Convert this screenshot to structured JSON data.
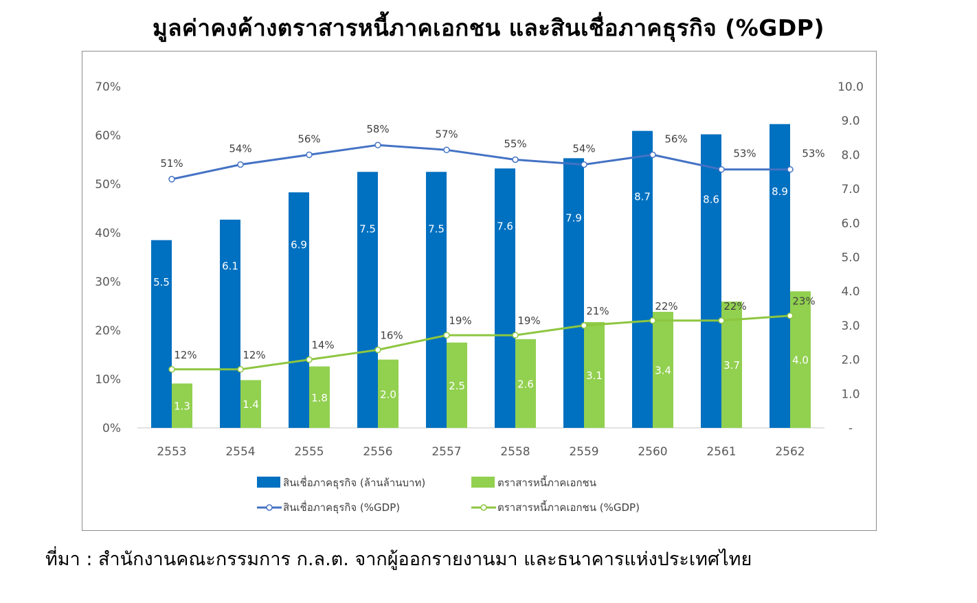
{
  "title": "มูลค่าคงค้างตราสารหนี้ภาคเอกชน และสินเชื่อภาคธุรกิจ (%GDP)",
  "source": "ที่มา : สำนักงานคณะกรรมการ ก.ล.ต. จากผู้ออกรายงานมา และธนาคารแห่งประเทศไทย",
  "chart_data": {
    "type": "bar",
    "categories": [
      "2553",
      "2554",
      "2555",
      "2556",
      "2557",
      "2558",
      "2559",
      "2560",
      "2561",
      "2562"
    ],
    "left_axis": {
      "ticks": [
        "0%",
        "10%",
        "20%",
        "30%",
        "40%",
        "50%",
        "60%",
        "70%"
      ],
      "range": [
        0,
        70
      ]
    },
    "right_axis": {
      "ticks": [
        "-",
        "1.0",
        "2.0",
        "3.0",
        "4.0",
        "5.0",
        "6.0",
        "7.0",
        "8.0",
        "9.0",
        "10.0"
      ],
      "range": [
        0,
        10
      ]
    },
    "series": [
      {
        "name": "สินเชื่อภาคธุรกิจ (ล้านล้านบาท)",
        "kind": "bar",
        "axis": "right",
        "color": "#0070c0",
        "values": [
          5.5,
          6.1,
          6.9,
          7.5,
          7.5,
          7.6,
          7.9,
          8.7,
          8.6,
          8.9
        ],
        "labels": [
          "5.5",
          "6.1",
          "6.9",
          "7.5",
          "7.5",
          "7.6",
          "7.9",
          "8.7",
          "8.6",
          "8.9"
        ]
      },
      {
        "name": "ตราสารหนี้ภาคเอกชน",
        "kind": "bar",
        "axis": "right",
        "color": "#92d050",
        "values": [
          1.3,
          1.4,
          1.8,
          2.0,
          2.5,
          2.6,
          3.1,
          3.4,
          3.7,
          4.0
        ],
        "labels": [
          "1.3",
          "1.4",
          "1.8",
          "2.0",
          "2.5",
          "2.6",
          "3.1",
          "3.4",
          "3.7",
          "4.0"
        ]
      },
      {
        "name": "สินเชื่อภาคธุรกิจ (%GDP)",
        "kind": "line",
        "axis": "left",
        "color": "#4472c4",
        "values": [
          51,
          54,
          56,
          58,
          57,
          55,
          54,
          56,
          53,
          53
        ],
        "labels": [
          "51%",
          "54%",
          "56%",
          "58%",
          "57%",
          "55%",
          "54%",
          "56%",
          "53%",
          "53%"
        ]
      },
      {
        "name": "ตราสารหนี้ภาคเอกชน (%GDP)",
        "kind": "line",
        "axis": "left",
        "color": "#8dc63f",
        "values": [
          12,
          12,
          14,
          16,
          19,
          19,
          21,
          22,
          22,
          23
        ],
        "labels": [
          "12%",
          "12%",
          "14%",
          "16%",
          "19%",
          "19%",
          "21%",
          "22%",
          "22%",
          "23%"
        ]
      }
    ],
    "legend_placement": "bottom"
  }
}
